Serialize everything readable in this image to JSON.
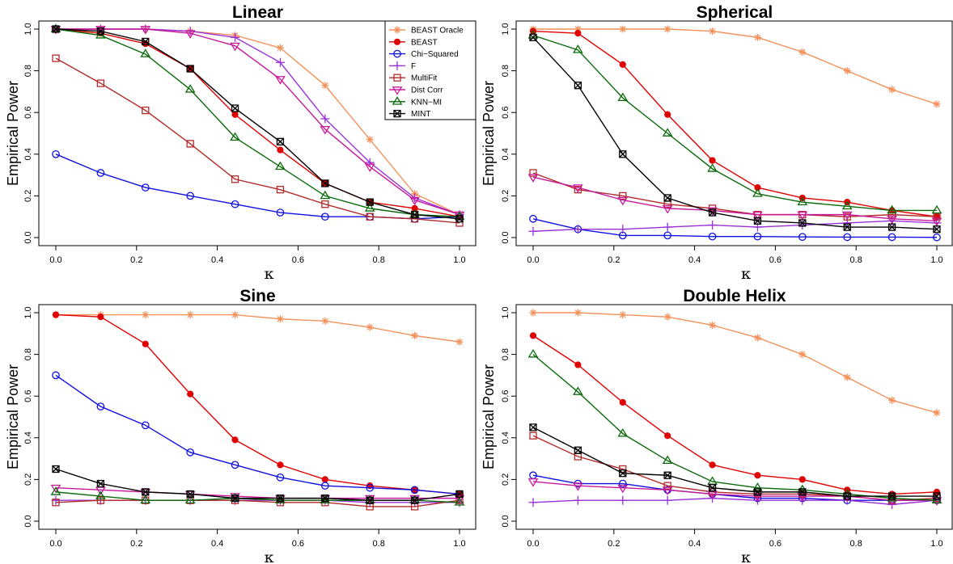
{
  "chart_data": [
    {
      "type": "line",
      "title": "Linear",
      "xlabel": "κ",
      "ylabel": "Empirical Power",
      "xlim": [
        0,
        1
      ],
      "ylim": [
        0,
        1
      ],
      "x_ticks": [
        "0.0",
        "0.2",
        "0.4",
        "0.6",
        "0.8",
        "1.0"
      ],
      "y_ticks": [
        "0.0",
        "0.2",
        "0.4",
        "0.6",
        "0.8",
        "1.0"
      ],
      "legend": "top-right",
      "x": [
        0,
        0.111,
        0.222,
        0.333,
        0.444,
        0.556,
        0.667,
        0.778,
        0.889,
        1.0
      ],
      "series": [
        {
          "name": "BEAST Oracle",
          "values": [
            1.0,
            1.0,
            1.0,
            0.99,
            0.97,
            0.91,
            0.73,
            0.47,
            0.21,
            0.11
          ]
        },
        {
          "name": "BEAST",
          "values": [
            1.0,
            0.98,
            0.93,
            0.81,
            0.59,
            0.42,
            0.26,
            0.17,
            0.14,
            0.1
          ]
        },
        {
          "name": "Chi−Squared",
          "values": [
            0.4,
            0.31,
            0.24,
            0.2,
            0.16,
            0.12,
            0.1,
            0.1,
            0.09,
            0.1
          ]
        },
        {
          "name": "F",
          "values": [
            1.0,
            1.0,
            1.0,
            0.99,
            0.96,
            0.84,
            0.57,
            0.36,
            0.19,
            0.11
          ]
        },
        {
          "name": "MultiFit",
          "values": [
            0.86,
            0.74,
            0.61,
            0.45,
            0.28,
            0.23,
            0.16,
            0.1,
            0.09,
            0.07
          ]
        },
        {
          "name": "Dist Corr",
          "values": [
            1.0,
            1.0,
            1.0,
            0.98,
            0.92,
            0.76,
            0.52,
            0.34,
            0.18,
            0.11
          ]
        },
        {
          "name": "KNN−MI",
          "values": [
            1.0,
            0.97,
            0.88,
            0.71,
            0.48,
            0.34,
            0.2,
            0.14,
            0.11,
            0.1
          ]
        },
        {
          "name": "MINT",
          "values": [
            1.0,
            0.99,
            0.94,
            0.81,
            0.62,
            0.46,
            0.26,
            0.17,
            0.11,
            0.09
          ]
        }
      ]
    },
    {
      "type": "line",
      "title": "Spherical",
      "xlabel": "κ",
      "ylabel": "Empirical Power",
      "xlim": [
        0,
        1
      ],
      "ylim": [
        0,
        1
      ],
      "x_ticks": [
        "0.0",
        "0.2",
        "0.4",
        "0.6",
        "0.8",
        "1.0"
      ],
      "y_ticks": [
        "0.0",
        "0.2",
        "0.4",
        "0.6",
        "0.8",
        "1.0"
      ],
      "x": [
        0,
        0.111,
        0.222,
        0.333,
        0.444,
        0.556,
        0.667,
        0.778,
        0.889,
        1.0
      ],
      "series": [
        {
          "name": "BEAST Oracle",
          "values": [
            1.0,
            1.0,
            1.0,
            1.0,
            0.99,
            0.96,
            0.89,
            0.8,
            0.71,
            0.64
          ]
        },
        {
          "name": "BEAST",
          "values": [
            0.99,
            0.98,
            0.83,
            0.59,
            0.37,
            0.24,
            0.19,
            0.17,
            0.13,
            0.1
          ]
        },
        {
          "name": "Chi−Squared",
          "values": [
            0.09,
            0.04,
            0.01,
            0.01,
            0.005,
            0.005,
            0.003,
            0.002,
            0.002,
            0.001
          ]
        },
        {
          "name": "F",
          "values": [
            0.03,
            0.04,
            0.04,
            0.05,
            0.06,
            0.05,
            0.06,
            0.07,
            0.08,
            0.07
          ]
        },
        {
          "name": "MultiFit",
          "values": [
            0.31,
            0.23,
            0.2,
            0.16,
            0.14,
            0.11,
            0.11,
            0.1,
            0.11,
            0.1
          ]
        },
        {
          "name": "Dist Corr",
          "values": [
            0.29,
            0.24,
            0.18,
            0.14,
            0.13,
            0.11,
            0.11,
            0.11,
            0.09,
            0.08
          ]
        },
        {
          "name": "KNN−MI",
          "values": [
            0.97,
            0.9,
            0.67,
            0.5,
            0.33,
            0.21,
            0.17,
            0.15,
            0.13,
            0.13
          ]
        },
        {
          "name": "MINT",
          "values": [
            0.96,
            0.73,
            0.4,
            0.19,
            0.12,
            0.08,
            0.07,
            0.05,
            0.05,
            0.04
          ]
        }
      ]
    },
    {
      "type": "line",
      "title": "Sine",
      "xlabel": "κ",
      "ylabel": "Empirical Power",
      "xlim": [
        0,
        1
      ],
      "ylim": [
        0,
        1
      ],
      "x_ticks": [
        "0.0",
        "0.2",
        "0.4",
        "0.6",
        "0.8",
        "1.0"
      ],
      "y_ticks": [
        "0.0",
        "0.2",
        "0.4",
        "0.6",
        "0.8",
        "1.0"
      ],
      "x": [
        0,
        0.111,
        0.222,
        0.333,
        0.444,
        0.556,
        0.667,
        0.778,
        0.889,
        1.0
      ],
      "series": [
        {
          "name": "BEAST Oracle",
          "values": [
            0.99,
            0.99,
            0.99,
            0.99,
            0.99,
            0.97,
            0.96,
            0.93,
            0.89,
            0.86
          ]
        },
        {
          "name": "BEAST",
          "values": [
            0.99,
            0.98,
            0.85,
            0.61,
            0.39,
            0.27,
            0.2,
            0.17,
            0.15,
            0.13
          ]
        },
        {
          "name": "Chi−Squared",
          "values": [
            0.7,
            0.55,
            0.46,
            0.33,
            0.27,
            0.21,
            0.17,
            0.16,
            0.15,
            0.13
          ]
        },
        {
          "name": "F",
          "values": [
            0.1,
            0.1,
            0.1,
            0.1,
            0.1,
            0.1,
            0.1,
            0.09,
            0.09,
            0.09
          ]
        },
        {
          "name": "MultiFit",
          "values": [
            0.09,
            0.1,
            0.1,
            0.1,
            0.1,
            0.09,
            0.09,
            0.07,
            0.07,
            0.1
          ]
        },
        {
          "name": "Dist Corr",
          "values": [
            0.16,
            0.15,
            0.14,
            0.13,
            0.12,
            0.11,
            0.11,
            0.11,
            0.11,
            0.11
          ]
        },
        {
          "name": "KNN−MI",
          "values": [
            0.14,
            0.12,
            0.1,
            0.1,
            0.11,
            0.1,
            0.1,
            0.1,
            0.1,
            0.09
          ]
        },
        {
          "name": "MINT",
          "values": [
            0.25,
            0.18,
            0.14,
            0.13,
            0.11,
            0.11,
            0.11,
            0.1,
            0.1,
            0.13
          ]
        }
      ]
    },
    {
      "type": "line",
      "title": "Double Helix",
      "xlabel": "κ",
      "ylabel": "Empirical Power",
      "xlim": [
        0,
        1
      ],
      "ylim": [
        0,
        1
      ],
      "x_ticks": [
        "0.0",
        "0.2",
        "0.4",
        "0.6",
        "0.8",
        "1.0"
      ],
      "y_ticks": [
        "0.0",
        "0.2",
        "0.4",
        "0.6",
        "0.8",
        "1.0"
      ],
      "x": [
        0,
        0.111,
        0.222,
        0.333,
        0.444,
        0.556,
        0.667,
        0.778,
        0.889,
        1.0
      ],
      "series": [
        {
          "name": "BEAST Oracle",
          "values": [
            1.0,
            1.0,
            0.99,
            0.98,
            0.94,
            0.88,
            0.8,
            0.69,
            0.58,
            0.52
          ]
        },
        {
          "name": "BEAST",
          "values": [
            0.89,
            0.75,
            0.57,
            0.41,
            0.27,
            0.22,
            0.2,
            0.15,
            0.13,
            0.14
          ]
        },
        {
          "name": "Chi−Squared",
          "values": [
            0.22,
            0.18,
            0.18,
            0.15,
            0.13,
            0.11,
            0.11,
            0.1,
            0.1,
            0.1
          ]
        },
        {
          "name": "F",
          "values": [
            0.09,
            0.1,
            0.1,
            0.1,
            0.11,
            0.1,
            0.1,
            0.1,
            0.08,
            0.1
          ]
        },
        {
          "name": "MultiFit",
          "values": [
            0.41,
            0.31,
            0.25,
            0.17,
            0.14,
            0.13,
            0.13,
            0.12,
            0.1,
            0.11
          ]
        },
        {
          "name": "Dist Corr",
          "values": [
            0.19,
            0.17,
            0.16,
            0.15,
            0.13,
            0.12,
            0.12,
            0.12,
            0.1,
            0.1
          ]
        },
        {
          "name": "KNN−MI",
          "values": [
            0.8,
            0.62,
            0.42,
            0.29,
            0.19,
            0.16,
            0.15,
            0.13,
            0.11,
            0.1
          ]
        },
        {
          "name": "MINT",
          "values": [
            0.45,
            0.34,
            0.23,
            0.22,
            0.16,
            0.14,
            0.14,
            0.12,
            0.12,
            0.12
          ]
        }
      ]
    }
  ],
  "series_styles": [
    {
      "color": "#F4915A",
      "marker": "asterisk"
    },
    {
      "color": "#E00000",
      "marker": "filled-circle"
    },
    {
      "color": "#1010E0",
      "marker": "open-circle"
    },
    {
      "color": "#9A30D8",
      "marker": "plus"
    },
    {
      "color": "#B22A2A",
      "marker": "open-square"
    },
    {
      "color": "#C8189A",
      "marker": "open-triangle-down"
    },
    {
      "color": "#0A6A0A",
      "marker": "open-triangle-up"
    },
    {
      "color": "#000000",
      "marker": "boxed-x"
    }
  ]
}
